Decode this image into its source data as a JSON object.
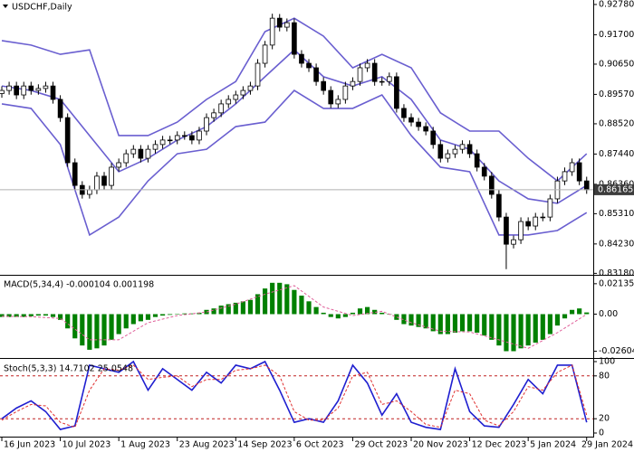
{
  "chart_data": [
    {
      "type": "candlestick",
      "title": "USDCHF,Daily",
      "up_color": "#ffffff",
      "down_color": "#000000",
      "wick_color": "#000000",
      "open": [
        0.896,
        0.8971,
        0.8987,
        0.8955,
        0.8987,
        0.8971,
        0.8978,
        0.8987,
        0.8939,
        0.8874,
        0.8713,
        0.8632,
        0.86,
        0.8616,
        0.8665,
        0.8632,
        0.8697,
        0.8713,
        0.8745,
        0.8761,
        0.8729,
        0.8761,
        0.8778,
        0.8794,
        0.8794,
        0.881,
        0.881,
        0.8794,
        0.8826,
        0.8874,
        0.8891,
        0.8923,
        0.8939,
        0.8955,
        0.8971,
        0.8987,
        0.9068,
        0.9133,
        0.9229,
        0.9197,
        0.9213,
        0.91,
        0.9068,
        0.9052,
        0.9003,
        0.8971,
        0.8923,
        0.8939,
        0.8987,
        0.9003,
        0.9052,
        0.9068,
        0.9003,
        0.9003,
        0.902,
        0.8907,
        0.8874,
        0.8858,
        0.8842,
        0.8826,
        0.8778,
        0.8729,
        0.8745,
        0.8761,
        0.8778,
        0.8745,
        0.8697,
        0.8665,
        0.86,
        0.8519,
        0.8422,
        0.8438,
        0.8503,
        0.8487,
        0.8519,
        0.8519,
        0.8584,
        0.8648,
        0.8681,
        0.8713,
        0.8648
      ],
      "high": [
        0.8986,
        0.9002,
        0.9002,
        0.9002,
        0.9002,
        0.8993,
        0.9002,
        0.9002,
        0.8954,
        0.8889,
        0.8728,
        0.8647,
        0.8631,
        0.868,
        0.868,
        0.8712,
        0.8728,
        0.876,
        0.8776,
        0.8776,
        0.8776,
        0.8793,
        0.8809,
        0.8809,
        0.8825,
        0.8825,
        0.8825,
        0.8841,
        0.8889,
        0.8906,
        0.8938,
        0.8954,
        0.897,
        0.8986,
        0.9002,
        0.9083,
        0.9148,
        0.9245,
        0.9244,
        0.9228,
        0.9228,
        0.9115,
        0.9083,
        0.9067,
        0.9018,
        0.8986,
        0.8954,
        0.9002,
        0.9018,
        0.9067,
        0.9083,
        0.9083,
        0.9018,
        0.9035,
        0.9035,
        0.8922,
        0.8889,
        0.8873,
        0.8857,
        0.8841,
        0.8793,
        0.876,
        0.8776,
        0.8793,
        0.8793,
        0.876,
        0.8712,
        0.868,
        0.8615,
        0.8534,
        0.8453,
        0.8518,
        0.8518,
        0.8534,
        0.8534,
        0.8599,
        0.8663,
        0.8696,
        0.8728,
        0.8728,
        0.8663
      ],
      "low": [
        0.8945,
        0.8956,
        0.894,
        0.894,
        0.8956,
        0.8956,
        0.8963,
        0.8924,
        0.8859,
        0.8698,
        0.8617,
        0.8585,
        0.8585,
        0.8601,
        0.8617,
        0.8617,
        0.8682,
        0.8698,
        0.873,
        0.8714,
        0.8714,
        0.8746,
        0.8763,
        0.8779,
        0.8779,
        0.8795,
        0.8779,
        0.8779,
        0.8811,
        0.8859,
        0.8876,
        0.8908,
        0.8924,
        0.894,
        0.8956,
        0.8972,
        0.9053,
        0.9118,
        0.9182,
        0.9182,
        0.9085,
        0.9053,
        0.9037,
        0.8988,
        0.8956,
        0.8908,
        0.8908,
        0.8924,
        0.8972,
        0.8988,
        0.9037,
        0.8988,
        0.8988,
        0.8988,
        0.8892,
        0.8859,
        0.8843,
        0.8827,
        0.8811,
        0.8763,
        0.8714,
        0.8714,
        0.873,
        0.8746,
        0.873,
        0.8682,
        0.865,
        0.8585,
        0.8504,
        0.8333,
        0.8407,
        0.8423,
        0.8472,
        0.8472,
        0.8504,
        0.8504,
        0.8569,
        0.8633,
        0.8666,
        0.8633,
        0.8602
      ],
      "close": [
        0.8971,
        0.8987,
        0.8955,
        0.8987,
        0.8971,
        0.8978,
        0.8987,
        0.8939,
        0.8874,
        0.8713,
        0.8632,
        0.86,
        0.8616,
        0.8665,
        0.8632,
        0.8697,
        0.8713,
        0.8745,
        0.8761,
        0.8729,
        0.8761,
        0.8778,
        0.8794,
        0.8794,
        0.881,
        0.881,
        0.8794,
        0.8826,
        0.8874,
        0.8891,
        0.8923,
        0.8939,
        0.8955,
        0.8971,
        0.8987,
        0.9068,
        0.9133,
        0.9229,
        0.9197,
        0.9213,
        0.91,
        0.9068,
        0.9052,
        0.9003,
        0.8971,
        0.8923,
        0.8939,
        0.8987,
        0.9003,
        0.9052,
        0.9068,
        0.9003,
        0.9003,
        0.902,
        0.8907,
        0.8874,
        0.8858,
        0.8842,
        0.8826,
        0.8778,
        0.8729,
        0.8745,
        0.8761,
        0.8778,
        0.8745,
        0.8697,
        0.8665,
        0.86,
        0.8519,
        0.8422,
        0.8438,
        0.8503,
        0.8487,
        0.8519,
        0.8519,
        0.8584,
        0.8648,
        0.8681,
        0.8713,
        0.8648,
        0.86165
      ],
      "series": [
        {
          "color": "#6a5fd0",
          "x": [
            0,
            4,
            8,
            12,
            16,
            20,
            24,
            28,
            32,
            36,
            40,
            44,
            48,
            52,
            56,
            60,
            64,
            68,
            72,
            76,
            80
          ],
          "values": [
            0.9149,
            0.9133,
            0.91,
            0.9116,
            0.881,
            0.881,
            0.8858,
            0.8939,
            0.9003,
            0.9181,
            0.9229,
            0.9165,
            0.9052,
            0.91,
            0.9052,
            0.8891,
            0.8826,
            0.8826,
            0.8729,
            0.8648,
            0.8745
          ]
        },
        {
          "color": "#6a5fd0",
          "x": [
            0,
            4,
            8,
            12,
            16,
            20,
            24,
            28,
            32,
            36,
            40,
            44,
            48,
            52,
            56,
            60,
            64,
            68,
            72,
            76,
            80
          ],
          "values": [
            0.8987,
            0.8971,
            0.8939,
            0.881,
            0.8681,
            0.8729,
            0.8794,
            0.8842,
            0.8923,
            0.902,
            0.9116,
            0.902,
            0.8987,
            0.902,
            0.8939,
            0.8794,
            0.8761,
            0.8648,
            0.8584,
            0.8568,
            0.8632
          ]
        },
        {
          "color": "#6a5fd0",
          "x": [
            0,
            4,
            8,
            12,
            16,
            20,
            24,
            28,
            32,
            36,
            40,
            44,
            48,
            52,
            56,
            60,
            64,
            68,
            72,
            76,
            80
          ],
          "values": [
            0.8923,
            0.8907,
            0.8778,
            0.8455,
            0.8519,
            0.8648,
            0.8745,
            0.8761,
            0.8842,
            0.8858,
            0.8971,
            0.8907,
            0.8907,
            0.8955,
            0.881,
            0.8697,
            0.8681,
            0.8455,
            0.8455,
            0.8471,
            0.8535
          ]
        }
      ],
      "last_price": 0.86165,
      "ylim": [
        0.8316,
        0.9294
      ],
      "yticks": [
        {
          "value": 0.9278,
          "label": "0.92780"
        },
        {
          "value": 0.917,
          "label": "0.91700"
        },
        {
          "value": 0.9065,
          "label": "0.90650"
        },
        {
          "value": 0.8957,
          "label": "0.89570"
        },
        {
          "value": 0.8852,
          "label": "0.88520"
        },
        {
          "value": 0.8744,
          "label": "0.87440"
        },
        {
          "value": 0.8636,
          "label": "0.86360"
        },
        {
          "value": 0.8531,
          "label": "0.85310"
        },
        {
          "value": 0.8423,
          "label": "0.84230"
        },
        {
          "value": 0.8318,
          "label": "0.83180"
        }
      ],
      "xlim": [
        -0.25,
        80.9
      ],
      "xticks": [
        {
          "value": 0,
          "label": "16 Jun 2023"
        },
        {
          "value": 8,
          "label": "10 Jul 2023"
        },
        {
          "value": 16,
          "label": "1 Aug 2023"
        },
        {
          "value": 24,
          "label": "23 Aug 2023"
        },
        {
          "value": 32,
          "label": "14 Sep 2023"
        },
        {
          "value": 40,
          "label": "6 Oct 2023"
        },
        {
          "value": 48,
          "label": "29 Oct 2023"
        },
        {
          "value": 56,
          "label": "20 Nov 2023"
        },
        {
          "value": 64,
          "label": "12 Dec 2023"
        },
        {
          "value": 72,
          "label": "5 Jan 2024"
        },
        {
          "value": 80,
          "label": "29 Jan 2024"
        }
      ]
    },
    {
      "type": "combo",
      "title": "MACD(5,34,4) -0.000104 0.001198",
      "series": [
        {
          "kind": "bar",
          "color": "#008000",
          "values": [
            -0.002,
            -0.002,
            -0.002,
            -0.002,
            -0.0015,
            -0.001,
            -0.001,
            -0.002,
            -0.004,
            -0.01,
            -0.017,
            -0.022,
            -0.025,
            -0.024,
            -0.022,
            -0.018,
            -0.014,
            -0.01,
            -0.007,
            -0.005,
            -0.004,
            -0.002,
            -0.001,
            -0.0005,
            0,
            0.0005,
            0.0005,
            0.001,
            0.003,
            0.004,
            0.006,
            0.007,
            0.008,
            0.009,
            0.01,
            0.014,
            0.018,
            0.022,
            0.022,
            0.021,
            0.017,
            0.013,
            0.009,
            0.005,
            0.001,
            -0.002,
            -0.003,
            -0.002,
            0.001,
            0.004,
            0.005,
            0.003,
            0.001,
            0,
            -0.004,
            -0.007,
            -0.008,
            -0.009,
            -0.01,
            -0.012,
            -0.014,
            -0.014,
            -0.013,
            -0.012,
            -0.012,
            -0.013,
            -0.015,
            -0.018,
            -0.022,
            -0.026,
            -0.026,
            -0.024,
            -0.022,
            -0.02,
            -0.018,
            -0.014,
            -0.008,
            -0.003,
            0.003,
            0.004,
            0.0012
          ]
        },
        {
          "kind": "line",
          "dashed": true,
          "color": "#e0609a",
          "x": [
            0,
            4,
            8,
            12,
            16,
            20,
            24,
            28,
            32,
            36,
            40,
            44,
            48,
            52,
            56,
            60,
            64,
            68,
            72,
            76,
            80
          ],
          "values": [
            -0.0015,
            -0.0018,
            -0.003,
            -0.018,
            -0.018,
            -0.006,
            -0.001,
            0.0015,
            0.007,
            0.014,
            0.02,
            0.005,
            -0.001,
            0.002,
            -0.006,
            -0.012,
            -0.0125,
            -0.018,
            -0.024,
            -0.013,
            -0.0001
          ]
        }
      ],
      "ylim": [
        -0.0295,
        0.0257
      ],
      "yticks": [
        0.021352,
        {
          "value": 0,
          "label": "0.00"
        },
        -0.026041
      ]
    },
    {
      "type": "line",
      "title": "Stoch(5,3,3) 14.7102 25.0548",
      "series": [
        {
          "color": "#1f1fd0",
          "x": [
            0,
            2,
            4,
            6,
            8,
            10,
            12,
            14,
            16,
            18,
            20,
            22,
            24,
            26,
            28,
            30,
            32,
            34,
            36,
            38,
            40,
            42,
            44,
            46,
            48,
            50,
            52,
            54,
            56,
            58,
            60,
            62,
            64,
            66,
            68,
            70,
            72,
            74,
            76,
            78,
            80
          ],
          "values": [
            20,
            35,
            45,
            30,
            5,
            10,
            95,
            90,
            85,
            100,
            60,
            90,
            75,
            60,
            85,
            70,
            95,
            90,
            100,
            60,
            15,
            20,
            15,
            45,
            95,
            70,
            25,
            55,
            15,
            8,
            5,
            90,
            30,
            10,
            8,
            40,
            75,
            55,
            95,
            95,
            15
          ]
        },
        {
          "color": "#e03030",
          "dashed": true,
          "x": [
            0,
            2,
            4,
            6,
            8,
            10,
            12,
            14,
            16,
            18,
            20,
            22,
            24,
            26,
            28,
            30,
            32,
            34,
            36,
            38,
            40,
            42,
            44,
            46,
            48,
            50,
            52,
            54,
            56,
            58,
            60,
            62,
            64,
            66,
            68,
            70,
            72,
            74,
            76,
            78,
            80
          ],
          "values": [
            18,
            30,
            40,
            38,
            15,
            8,
            60,
            90,
            88,
            95,
            75,
            78,
            80,
            65,
            75,
            75,
            88,
            90,
            95,
            80,
            30,
            18,
            18,
            35,
            80,
            85,
            40,
            45,
            30,
            12,
            8,
            60,
            55,
            18,
            10,
            30,
            65,
            60,
            85,
            95,
            25
          ]
        }
      ],
      "ylim": [
        0,
        100
      ],
      "yticks": [
        100,
        80,
        20,
        0
      ],
      "level_color": "#c02020"
    }
  ]
}
